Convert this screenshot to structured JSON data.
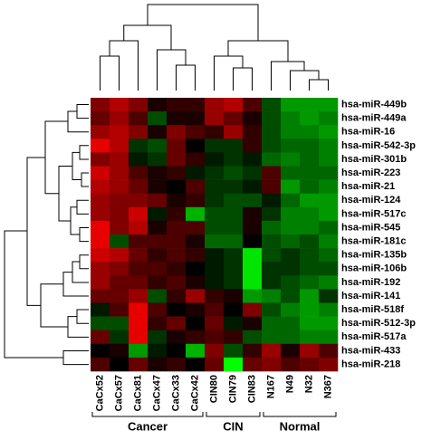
{
  "chart_data": {
    "type": "heatmap",
    "columns": [
      "CaCx52",
      "CaCx57",
      "CaCx81",
      "CaCx47",
      "CaCx33",
      "CaCx42",
      "CIN80",
      "CIN79",
      "CIN83",
      "N167",
      "N49",
      "N32",
      "N367"
    ],
    "rows": [
      "hsa-miR-449b",
      "hsa-miR-449a",
      "hsa-miR-16",
      "hsa-miR-542-3p",
      "hsa-miR-301b",
      "hsa-miR-223",
      "hsa-miR-21",
      "hsa-miR-124",
      "hsa-miR-517c",
      "hsa-miR-545",
      "hsa-miR-181c",
      "hsa-miR-135b",
      "hsa-miR-106b",
      "hsa-miR-192",
      "hsa-miR-141",
      "hsa-miR-518f",
      "hsa-miR-512-3p",
      "hsa-miR-517a",
      "hsa-miR-433",
      "hsa-miR-218"
    ],
    "column_groups": [
      {
        "name": "Cancer",
        "count": 6
      },
      {
        "name": "CIN",
        "count": 3
      },
      {
        "name": "Normal",
        "count": 4
      }
    ],
    "zlim": [
      -1,
      1
    ],
    "colormap": [
      "#00ff00",
      "#000000",
      "#ff0000"
    ],
    "values": [
      [
        0.5,
        0.7,
        0.5,
        0.1,
        0.2,
        0.2,
        0.6,
        0.7,
        0.3,
        -0.3,
        -0.6,
        -0.6,
        -0.6
      ],
      [
        0.4,
        0.6,
        0.3,
        -0.3,
        0.1,
        0.1,
        0.6,
        0.4,
        0.1,
        -0.3,
        -0.5,
        -0.6,
        -0.5
      ],
      [
        0.6,
        0.7,
        0.5,
        0.1,
        0.5,
        0.3,
        0.2,
        0.6,
        0.2,
        -0.3,
        -0.5,
        -0.5,
        -0.6
      ],
      [
        0.9,
        0.7,
        -0.2,
        -0.3,
        0.4,
        0,
        -0.2,
        -0.2,
        0.2,
        -0.3,
        -0.4,
        -0.4,
        -0.5
      ],
      [
        0.5,
        0.6,
        -0.1,
        -0.2,
        0.4,
        0.2,
        -0.1,
        -0.2,
        -0.1,
        -0.4,
        -0.5,
        -0.4,
        -0.5
      ],
      [
        0.8,
        0.6,
        0.3,
        0.1,
        0.2,
        -0.1,
        -0.2,
        -0.3,
        -0.2,
        0.3,
        -0.4,
        -0.4,
        -0.4
      ],
      [
        0.7,
        0.6,
        0.4,
        0.1,
        0,
        0.3,
        -0.2,
        -0.2,
        -0.1,
        0.3,
        -0.6,
        -0.4,
        -0.5
      ],
      [
        0.6,
        0.5,
        0.5,
        0.4,
        0.1,
        0.2,
        -0.2,
        -0.3,
        -0.3,
        -0.1,
        -0.4,
        -0.6,
        -0.6
      ],
      [
        0.6,
        0.5,
        0.8,
        -0.1,
        0.2,
        -0.7,
        -0.3,
        -0.3,
        0.1,
        -0.2,
        -0.5,
        -0.5,
        -0.6
      ],
      [
        0.9,
        0.5,
        0.7,
        0.1,
        0.3,
        0.3,
        -0.3,
        -0.3,
        0.1,
        -0.4,
        -0.5,
        -0.5,
        -0.4
      ],
      [
        0.9,
        -0.3,
        0.3,
        0.3,
        0.3,
        0.1,
        -0.4,
        -0.4,
        0,
        -0.3,
        -0.4,
        -0.3,
        -0.5
      ],
      [
        0.8,
        0.7,
        0.4,
        0.2,
        0.3,
        0.2,
        -0.1,
        -0.2,
        -0.9,
        -0.3,
        -0.2,
        -0.3,
        -0.4
      ],
      [
        0.6,
        0.5,
        0.3,
        0.3,
        0.2,
        0,
        -0.1,
        -0.2,
        -0.9,
        -0.2,
        -0.2,
        -0.3,
        -0.3
      ],
      [
        0.6,
        0.4,
        0.4,
        0.2,
        0.3,
        0.1,
        -0.1,
        -0.2,
        -0.9,
        -0.2,
        -0.3,
        -0.4,
        -0.5
      ],
      [
        0.4,
        0.4,
        0.6,
        -0.3,
        0.2,
        0.6,
        0.2,
        0.1,
        -0.6,
        -0.5,
        -0.3,
        -0.6,
        -0.2
      ],
      [
        -0.1,
        0.3,
        0.9,
        0.3,
        0,
        0.1,
        0.3,
        0,
        0.5,
        -0.3,
        -0.5,
        -0.6,
        -0.5
      ],
      [
        -0.3,
        -0.3,
        0.9,
        0.2,
        0.4,
        0,
        0.4,
        -0.1,
        0.1,
        -0.4,
        -0.4,
        -0.6,
        -0.6
      ],
      [
        0.4,
        -0.2,
        0.9,
        -0.2,
        0.1,
        0.2,
        0.3,
        0.2,
        -0.3,
        -0.4,
        -0.4,
        -0.5,
        -0.5
      ],
      [
        0,
        0.1,
        -0.6,
        -0.1,
        0,
        -0.7,
        0.5,
        -0.3,
        0.2,
        0.6,
        0.1,
        0.6,
        0.3
      ],
      [
        0.3,
        0,
        0.4,
        0.1,
        0.2,
        0,
        0.4,
        -1,
        0.4,
        0.5,
        0.3,
        0.4,
        0.5
      ]
    ]
  }
}
